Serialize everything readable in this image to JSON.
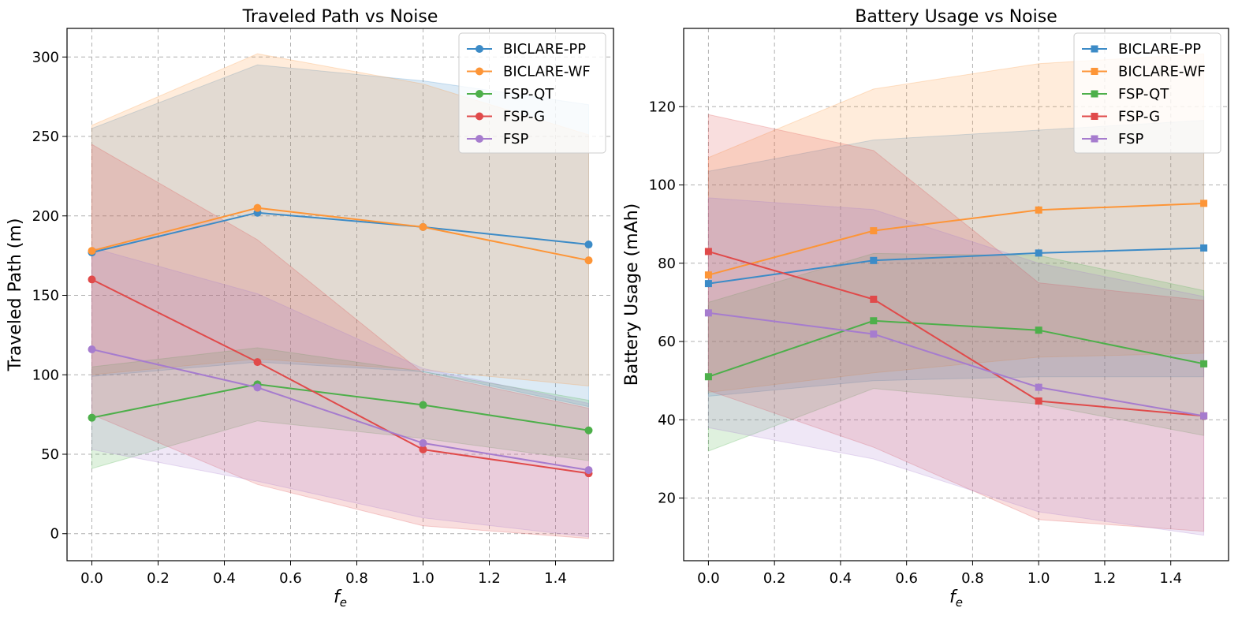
{
  "chart_data": [
    {
      "type": "line",
      "title": "Traveled Path vs Noise",
      "xlabel": "f",
      "xlabel_sub": "e",
      "ylabel": "Traveled Path (m)",
      "xlim": [
        -0.075,
        1.575
      ],
      "ylim": [
        -17,
        318
      ],
      "xticks": [
        0.0,
        0.2,
        0.4,
        0.6,
        0.8,
        1.0,
        1.2,
        1.4
      ],
      "xtick_labels": [
        "0.0",
        "0.2",
        "0.4",
        "0.6",
        "0.8",
        "1.0",
        "1.2",
        "1.4"
      ],
      "yticks": [
        0,
        50,
        100,
        150,
        200,
        250,
        300
      ],
      "ytick_labels": [
        "0",
        "50",
        "100",
        "150",
        "200",
        "250",
        "300"
      ],
      "grid": true,
      "legend_position": "top-right",
      "marker": "circle",
      "x": [
        0.0,
        0.5,
        1.0,
        1.5
      ],
      "series": [
        {
          "name": "BICLARE-PP",
          "color": "#3c8bc7",
          "values": [
            177,
            202,
            193,
            182
          ],
          "lower": [
            99,
            108,
            102,
            80
          ],
          "upper": [
            255,
            295,
            285,
            270
          ]
        },
        {
          "name": "BICLARE-WF",
          "color": "#fd9537",
          "values": [
            178,
            205,
            193,
            172
          ],
          "lower": [
            100,
            110,
            103,
            93
          ],
          "upper": [
            257,
            302,
            283,
            251
          ]
        },
        {
          "name": "FSP-QT",
          "color": "#4daf4a",
          "values": [
            73,
            94,
            81,
            65
          ],
          "lower": [
            41,
            71,
            60,
            46
          ],
          "upper": [
            105,
            117,
            102,
            84
          ]
        },
        {
          "name": "FSP-G",
          "color": "#e04a4a",
          "values": [
            160,
            108,
            53,
            38
          ],
          "lower": [
            75,
            31,
            5,
            -3
          ],
          "upper": [
            245,
            185,
            101,
            79
          ]
        },
        {
          "name": "FSP",
          "color": "#a67cce",
          "values": [
            116,
            92,
            57,
            40
          ],
          "lower": [
            53,
            33,
            10,
            -2
          ],
          "upper": [
            180,
            151,
            104,
            82
          ]
        }
      ]
    },
    {
      "type": "line",
      "title": "Battery Usage vs Noise",
      "xlabel": "f",
      "xlabel_sub": "e",
      "ylabel": "Battery Usage (mAh)",
      "xlim": [
        -0.075,
        1.575
      ],
      "ylim": [
        4,
        140
      ],
      "xticks": [
        0.0,
        0.2,
        0.4,
        0.6,
        0.8,
        1.0,
        1.2,
        1.4
      ],
      "xtick_labels": [
        "0.0",
        "0.2",
        "0.4",
        "0.6",
        "0.8",
        "1.0",
        "1.2",
        "1.4"
      ],
      "yticks": [
        20,
        40,
        60,
        80,
        100,
        120
      ],
      "ytick_labels": [
        "20",
        "40",
        "60",
        "80",
        "100",
        "120"
      ],
      "grid": true,
      "legend_position": "top-right",
      "marker": "square",
      "x": [
        0.0,
        0.5,
        1.0,
        1.5
      ],
      "series": [
        {
          "name": "BICLARE-PP",
          "color": "#3c8bc7",
          "values": [
            74.8,
            80.7,
            82.6,
            83.9
          ],
          "lower": [
            46,
            50,
            51,
            51
          ],
          "upper": [
            103.5,
            111.5,
            114,
            116.5
          ]
        },
        {
          "name": "BICLARE-WF",
          "color": "#fd9537",
          "values": [
            77,
            88.3,
            93.6,
            95.3
          ],
          "lower": [
            47,
            52,
            56,
            57
          ],
          "upper": [
            107,
            124.5,
            131,
            133.5
          ]
        },
        {
          "name": "FSP-QT",
          "color": "#4daf4a",
          "values": [
            51,
            65.3,
            62.9,
            54.3
          ],
          "lower": [
            32,
            48,
            44,
            36
          ],
          "upper": [
            70,
            82.5,
            82,
            73
          ]
        },
        {
          "name": "FSP-G",
          "color": "#e04a4a",
          "values": [
            83,
            70.8,
            44.8,
            41
          ],
          "lower": [
            47.5,
            33,
            14.5,
            11.5
          ],
          "upper": [
            118,
            108.8,
            75,
            70.5
          ]
        },
        {
          "name": "FSP",
          "color": "#a67cce",
          "values": [
            67.3,
            61.9,
            48.3,
            41
          ],
          "lower": [
            38,
            30,
            16.5,
            10.5
          ],
          "upper": [
            96.7,
            93.7,
            80,
            71.5
          ]
        }
      ]
    }
  ]
}
